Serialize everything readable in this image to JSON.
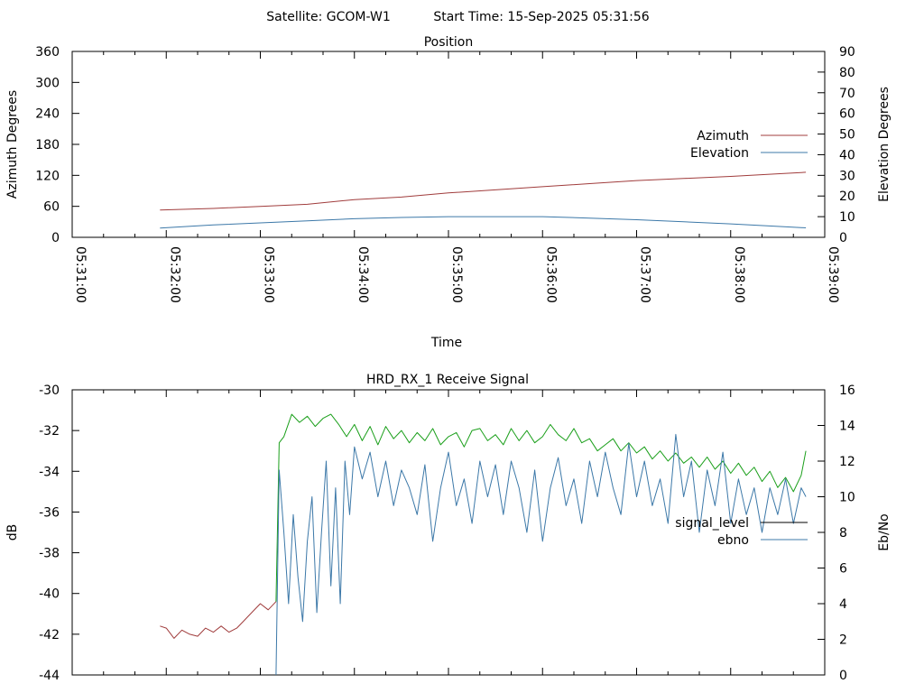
{
  "header": {
    "satellite": "Satellite: GCOM-W1",
    "start_time": "Start Time: 15-Sep-2025 05:31:56"
  },
  "chart_data": [
    {
      "type": "line",
      "title": "Position",
      "xlabel": "Time",
      "ylabel": "Azimuth Degrees",
      "y2label": "Elevation Degrees",
      "xlim": [
        "05:31:00",
        "05:39:00"
      ],
      "ylim": [
        0,
        360
      ],
      "y2lim": [
        0,
        90
      ],
      "x_ticks": [
        "05:31:00",
        "05:32:00",
        "05:33:00",
        "05:34:00",
        "05:35:00",
        "05:36:00",
        "05:37:00",
        "05:38:00",
        "05:39:00"
      ],
      "y_ticks": [
        0,
        60,
        120,
        180,
        240,
        300,
        360
      ],
      "y2_ticks": [
        0,
        10,
        20,
        30,
        40,
        50,
        60,
        70,
        80,
        90
      ],
      "legend_position": "right",
      "series": [
        {
          "name": "Azimuth",
          "axis": "y",
          "color": "#a03c3c",
          "points": [
            [
              "05:31:56",
              53
            ],
            [
              "05:32:30",
              56
            ],
            [
              "05:33:00",
              60
            ],
            [
              "05:33:30",
              64
            ],
            [
              "05:34:00",
              73
            ],
            [
              "05:34:30",
              78
            ],
            [
              "05:35:00",
              86
            ],
            [
              "05:35:30",
              92
            ],
            [
              "05:36:00",
              98
            ],
            [
              "05:36:30",
              104
            ],
            [
              "05:37:00",
              110
            ],
            [
              "05:37:30",
              114
            ],
            [
              "05:38:00",
              118
            ],
            [
              "05:38:30",
              123
            ],
            [
              "05:38:48",
              126
            ]
          ]
        },
        {
          "name": "Elevation",
          "axis": "y2",
          "color": "#3c78a8",
          "points": [
            [
              "05:31:56",
              4.5
            ],
            [
              "05:32:30",
              6
            ],
            [
              "05:33:00",
              7
            ],
            [
              "05:33:30",
              8
            ],
            [
              "05:34:00",
              9
            ],
            [
              "05:34:30",
              9.6
            ],
            [
              "05:35:00",
              10
            ],
            [
              "05:35:30",
              10
            ],
            [
              "05:36:00",
              10
            ],
            [
              "05:36:30",
              9.3
            ],
            [
              "05:37:00",
              8.5
            ],
            [
              "05:37:30",
              7.5
            ],
            [
              "05:38:00",
              6.5
            ],
            [
              "05:38:30",
              5.3
            ],
            [
              "05:38:48",
              4.6
            ]
          ]
        }
      ]
    },
    {
      "type": "line",
      "title": "HRD_RX_1 Receive Signal",
      "xlabel": "",
      "ylabel": "dB",
      "y2label": "Eb/No",
      "xlim": [
        "05:31:00",
        "05:39:00"
      ],
      "ylim": [
        -44,
        -30
      ],
      "y2lim": [
        0,
        16
      ],
      "y_ticks": [
        -44,
        -42,
        -40,
        -38,
        -36,
        -34,
        -32,
        -30
      ],
      "y2_ticks": [
        0,
        2,
        4,
        6,
        8,
        10,
        12,
        14,
        16
      ],
      "legend_position": "right",
      "series": [
        {
          "name": "signal_level",
          "axis": "y",
          "color": "#a03c3c",
          "points": [
            [
              "05:31:56",
              -41.6
            ],
            [
              "05:32:00",
              -41.7
            ],
            [
              "05:32:05",
              -42.2
            ],
            [
              "05:32:10",
              -41.8
            ],
            [
              "05:32:15",
              -42.0
            ],
            [
              "05:32:20",
              -42.1
            ],
            [
              "05:32:25",
              -41.7
            ],
            [
              "05:32:30",
              -41.9
            ],
            [
              "05:32:35",
              -41.6
            ],
            [
              "05:32:40",
              -41.9
            ],
            [
              "05:32:45",
              -41.7
            ],
            [
              "05:32:50",
              -41.3
            ],
            [
              "05:32:55",
              -40.9
            ],
            [
              "05:33:00",
              -40.5
            ],
            [
              "05:33:05",
              -40.8
            ],
            [
              "05:33:10",
              -40.4
            ]
          ]
        },
        {
          "name": "signal_level",
          "axis": "y",
          "color": "#1a9f1a",
          "points": [
            [
              "05:33:10",
              -40.4
            ],
            [
              "05:33:12",
              -32.6
            ],
            [
              "05:33:15",
              -32.3
            ],
            [
              "05:33:20",
              -31.2
            ],
            [
              "05:33:25",
              -31.6
            ],
            [
              "05:33:30",
              -31.3
            ],
            [
              "05:33:35",
              -31.8
            ],
            [
              "05:33:40",
              -31.4
            ],
            [
              "05:33:45",
              -31.2
            ],
            [
              "05:33:50",
              -31.7
            ],
            [
              "05:33:55",
              -32.3
            ],
            [
              "05:34:00",
              -31.7
            ],
            [
              "05:34:05",
              -32.5
            ],
            [
              "05:34:10",
              -31.8
            ],
            [
              "05:34:15",
              -32.7
            ],
            [
              "05:34:20",
              -31.8
            ],
            [
              "05:34:25",
              -32.4
            ],
            [
              "05:34:30",
              -32.0
            ],
            [
              "05:34:35",
              -32.6
            ],
            [
              "05:34:40",
              -32.1
            ],
            [
              "05:34:45",
              -32.5
            ],
            [
              "05:34:50",
              -31.9
            ],
            [
              "05:34:55",
              -32.7
            ],
            [
              "05:35:00",
              -32.3
            ],
            [
              "05:35:05",
              -32.1
            ],
            [
              "05:35:10",
              -32.8
            ],
            [
              "05:35:15",
              -32.0
            ],
            [
              "05:35:20",
              -31.9
            ],
            [
              "05:35:25",
              -32.5
            ],
            [
              "05:35:30",
              -32.2
            ],
            [
              "05:35:35",
              -32.7
            ],
            [
              "05:35:40",
              -31.9
            ],
            [
              "05:35:45",
              -32.5
            ],
            [
              "05:35:50",
              -32.0
            ],
            [
              "05:35:55",
              -32.6
            ],
            [
              "05:36:00",
              -32.3
            ],
            [
              "05:36:05",
              -31.7
            ],
            [
              "05:36:10",
              -32.2
            ],
            [
              "05:36:15",
              -32.5
            ],
            [
              "05:36:20",
              -31.9
            ],
            [
              "05:36:25",
              -32.6
            ],
            [
              "05:36:30",
              -32.4
            ],
            [
              "05:36:35",
              -33.0
            ],
            [
              "05:36:40",
              -32.7
            ],
            [
              "05:36:45",
              -32.4
            ],
            [
              "05:36:50",
              -33.0
            ],
            [
              "05:36:55",
              -32.6
            ],
            [
              "05:37:00",
              -33.1
            ],
            [
              "05:37:05",
              -32.8
            ],
            [
              "05:37:10",
              -33.4
            ],
            [
              "05:37:15",
              -33.0
            ],
            [
              "05:37:20",
              -33.5
            ],
            [
              "05:37:25",
              -33.1
            ],
            [
              "05:37:30",
              -33.6
            ],
            [
              "05:37:35",
              -33.3
            ],
            [
              "05:37:40",
              -33.8
            ],
            [
              "05:37:45",
              -33.3
            ],
            [
              "05:37:50",
              -33.9
            ],
            [
              "05:37:55",
              -33.5
            ],
            [
              "05:38:00",
              -34.1
            ],
            [
              "05:38:05",
              -33.6
            ],
            [
              "05:38:10",
              -34.2
            ],
            [
              "05:38:15",
              -33.8
            ],
            [
              "05:38:20",
              -34.5
            ],
            [
              "05:38:25",
              -34.0
            ],
            [
              "05:38:30",
              -34.8
            ],
            [
              "05:38:35",
              -34.3
            ],
            [
              "05:38:40",
              -35.0
            ],
            [
              "05:38:45",
              -34.2
            ],
            [
              "05:38:48",
              -33.0
            ]
          ]
        },
        {
          "name": "ebno",
          "axis": "y2",
          "color": "#3c78a8",
          "points": [
            [
              "05:33:10",
              0
            ],
            [
              "05:33:12",
              11.5
            ],
            [
              "05:33:15",
              8.0
            ],
            [
              "05:33:18",
              4.0
            ],
            [
              "05:33:21",
              9.0
            ],
            [
              "05:33:24",
              5.5
            ],
            [
              "05:33:27",
              3.0
            ],
            [
              "05:33:30",
              7.5
            ],
            [
              "05:33:33",
              10.0
            ],
            [
              "05:33:36",
              3.5
            ],
            [
              "05:33:39",
              8.0
            ],
            [
              "05:33:42",
              12.0
            ],
            [
              "05:33:45",
              5.0
            ],
            [
              "05:33:48",
              10.5
            ],
            [
              "05:33:51",
              4.0
            ],
            [
              "05:33:54",
              12.0
            ],
            [
              "05:33:57",
              9.0
            ],
            [
              "05:34:00",
              12.8
            ],
            [
              "05:34:05",
              11.0
            ],
            [
              "05:34:10",
              12.5
            ],
            [
              "05:34:15",
              10.0
            ],
            [
              "05:34:20",
              12.0
            ],
            [
              "05:34:25",
              9.5
            ],
            [
              "05:34:30",
              11.5
            ],
            [
              "05:34:35",
              10.5
            ],
            [
              "05:34:40",
              9.0
            ],
            [
              "05:34:45",
              11.8
            ],
            [
              "05:34:50",
              7.5
            ],
            [
              "05:34:55",
              10.5
            ],
            [
              "05:35:00",
              12.5
            ],
            [
              "05:35:05",
              9.5
            ],
            [
              "05:35:10",
              11.0
            ],
            [
              "05:35:15",
              8.5
            ],
            [
              "05:35:20",
              12.0
            ],
            [
              "05:35:25",
              10.0
            ],
            [
              "05:35:30",
              11.8
            ],
            [
              "05:35:35",
              9.0
            ],
            [
              "05:35:40",
              12.0
            ],
            [
              "05:35:45",
              10.5
            ],
            [
              "05:35:50",
              8.0
            ],
            [
              "05:35:55",
              11.5
            ],
            [
              "05:36:00",
              7.5
            ],
            [
              "05:36:05",
              10.5
            ],
            [
              "05:36:10",
              12.2
            ],
            [
              "05:36:15",
              9.5
            ],
            [
              "05:36:20",
              11.0
            ],
            [
              "05:36:25",
              8.5
            ],
            [
              "05:36:30",
              12.0
            ],
            [
              "05:36:35",
              10.0
            ],
            [
              "05:36:40",
              12.5
            ],
            [
              "05:36:45",
              10.5
            ],
            [
              "05:36:50",
              9.0
            ],
            [
              "05:36:55",
              13.0
            ],
            [
              "05:37:00",
              10.0
            ],
            [
              "05:37:05",
              12.0
            ],
            [
              "05:37:10",
              9.5
            ],
            [
              "05:37:15",
              11.0
            ],
            [
              "05:37:20",
              8.5
            ],
            [
              "05:37:25",
              13.5
            ],
            [
              "05:37:30",
              10.0
            ],
            [
              "05:37:35",
              12.0
            ],
            [
              "05:37:40",
              8.0
            ],
            [
              "05:37:45",
              11.5
            ],
            [
              "05:37:50",
              9.5
            ],
            [
              "05:37:55",
              12.5
            ],
            [
              "05:38:00",
              8.5
            ],
            [
              "05:38:05",
              11.0
            ],
            [
              "05:38:10",
              9.0
            ],
            [
              "05:38:15",
              10.5
            ],
            [
              "05:38:20",
              8.0
            ],
            [
              "05:38:25",
              10.5
            ],
            [
              "05:38:30",
              9.0
            ],
            [
              "05:38:35",
              11.0
            ],
            [
              "05:38:40",
              8.5
            ],
            [
              "05:38:45",
              10.5
            ],
            [
              "05:38:48",
              10.0
            ]
          ]
        }
      ],
      "legend_entries": [
        {
          "name": "signal_level",
          "color": "#000000"
        },
        {
          "name": "ebno",
          "color": "#3c78a8"
        }
      ]
    }
  ]
}
